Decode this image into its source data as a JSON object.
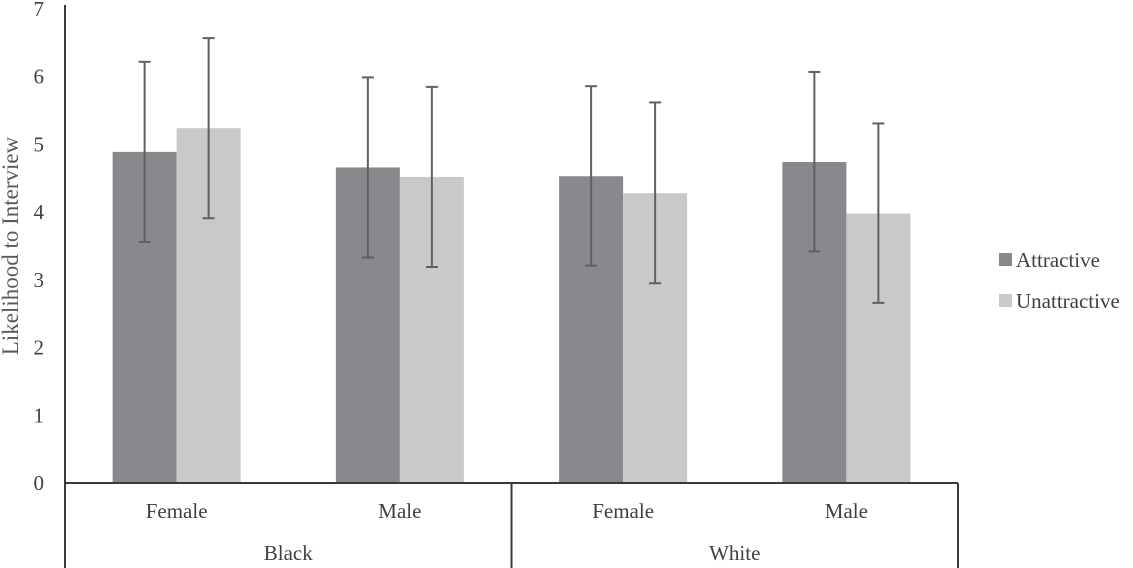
{
  "chart_data": {
    "type": "bar",
    "ylabel": "Likelihood to Interview",
    "ylim": [
      0,
      7
    ],
    "yticks": [
      0,
      1,
      2,
      3,
      4,
      5,
      6,
      7
    ],
    "grid": false,
    "legend_position": "right",
    "groups": [
      {
        "label": "Black",
        "categories": [
          "Female",
          "Male"
        ]
      },
      {
        "label": "White",
        "categories": [
          "Female",
          "Male"
        ]
      }
    ],
    "categories": [
      "Female",
      "Male",
      "Female",
      "Male"
    ],
    "series": [
      {
        "name": "Attractive",
        "color": "#88898c",
        "values": [
          4.89,
          4.66,
          4.53,
          4.74
        ],
        "error_low": [
          3.56,
          3.33,
          3.21,
          3.42
        ],
        "error_high": [
          6.22,
          5.99,
          5.86,
          6.07
        ]
      },
      {
        "name": "Unattractive",
        "color": "#c8c9cb",
        "values": [
          5.24,
          4.52,
          4.28,
          3.98
        ],
        "error_low": [
          3.91,
          3.19,
          2.95,
          2.66
        ],
        "error_high": [
          6.57,
          5.85,
          5.62,
          5.31
        ]
      }
    ]
  }
}
